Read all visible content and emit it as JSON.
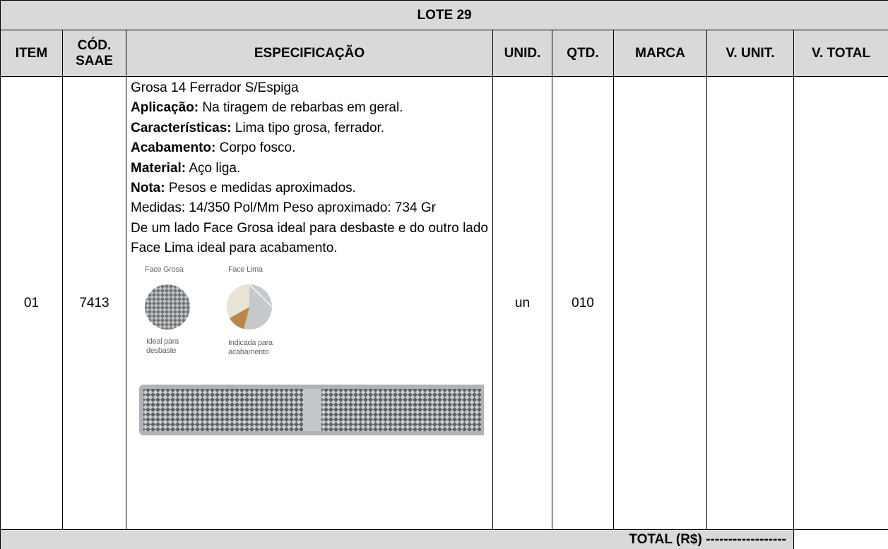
{
  "table": {
    "title": "LOTE 29",
    "headers": [
      "ITEM",
      "CÓD. SAAE",
      "ESPECIFICAÇÃO",
      "UNID.",
      "QTD.",
      "MARCA",
      "V. UNIT.",
      "V. TOTAL"
    ],
    "rows": [
      {
        "item": "01",
        "code": "7413",
        "spec": [
          {
            "text": "Grosa 14 Ferrador S/Espiga"
          },
          {
            "label": "Aplicação:",
            "text": "Na tiragem de rebarbas em geral."
          },
          {
            "label": "Características:",
            "text": "Lima tipo grosa, ferrador."
          },
          {
            "label": "Acabamento:",
            "text": "Corpo fosco."
          },
          {
            "label": "Material:",
            "text": "Aço liga."
          },
          {
            "label": "Nota:",
            "text": "Pesos e medidas aproximados."
          },
          {
            "text": "Medidas: 14/350 Pol/Mm Peso aproximado: 734 Gr"
          },
          {
            "text": "De um lado Face Grosa ideal para desbaste e do outro lado Face Lima ideal para acabamento."
          }
        ],
        "figure": {
          "labels": [
            "Face Grosa",
            "Face Lima",
            "Ideal para desbaste",
            "Indicada para acabamento"
          ]
        },
        "unit": "un",
        "qty": "010"
      }
    ],
    "total_label": "TOTAL (R$) ------------------"
  }
}
